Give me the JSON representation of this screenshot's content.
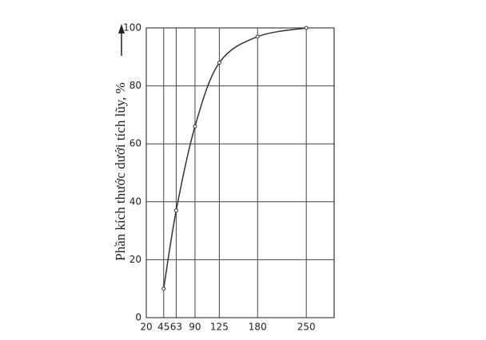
{
  "chart_data": {
    "type": "line",
    "y_label": "Phần kích thước dưới tích lũy, %",
    "x": [
      45,
      63,
      90,
      125,
      180,
      250
    ],
    "values": [
      10,
      37,
      66,
      88,
      97,
      100
    ],
    "color": "#333",
    "xlim": [
      20,
      290
    ],
    "xticks": [
      20,
      45,
      63,
      90,
      125,
      180,
      250
    ],
    "ylim": [
      0,
      100
    ],
    "yticks": [
      0,
      20,
      40,
      60,
      80,
      100
    ],
    "grid": true
  }
}
